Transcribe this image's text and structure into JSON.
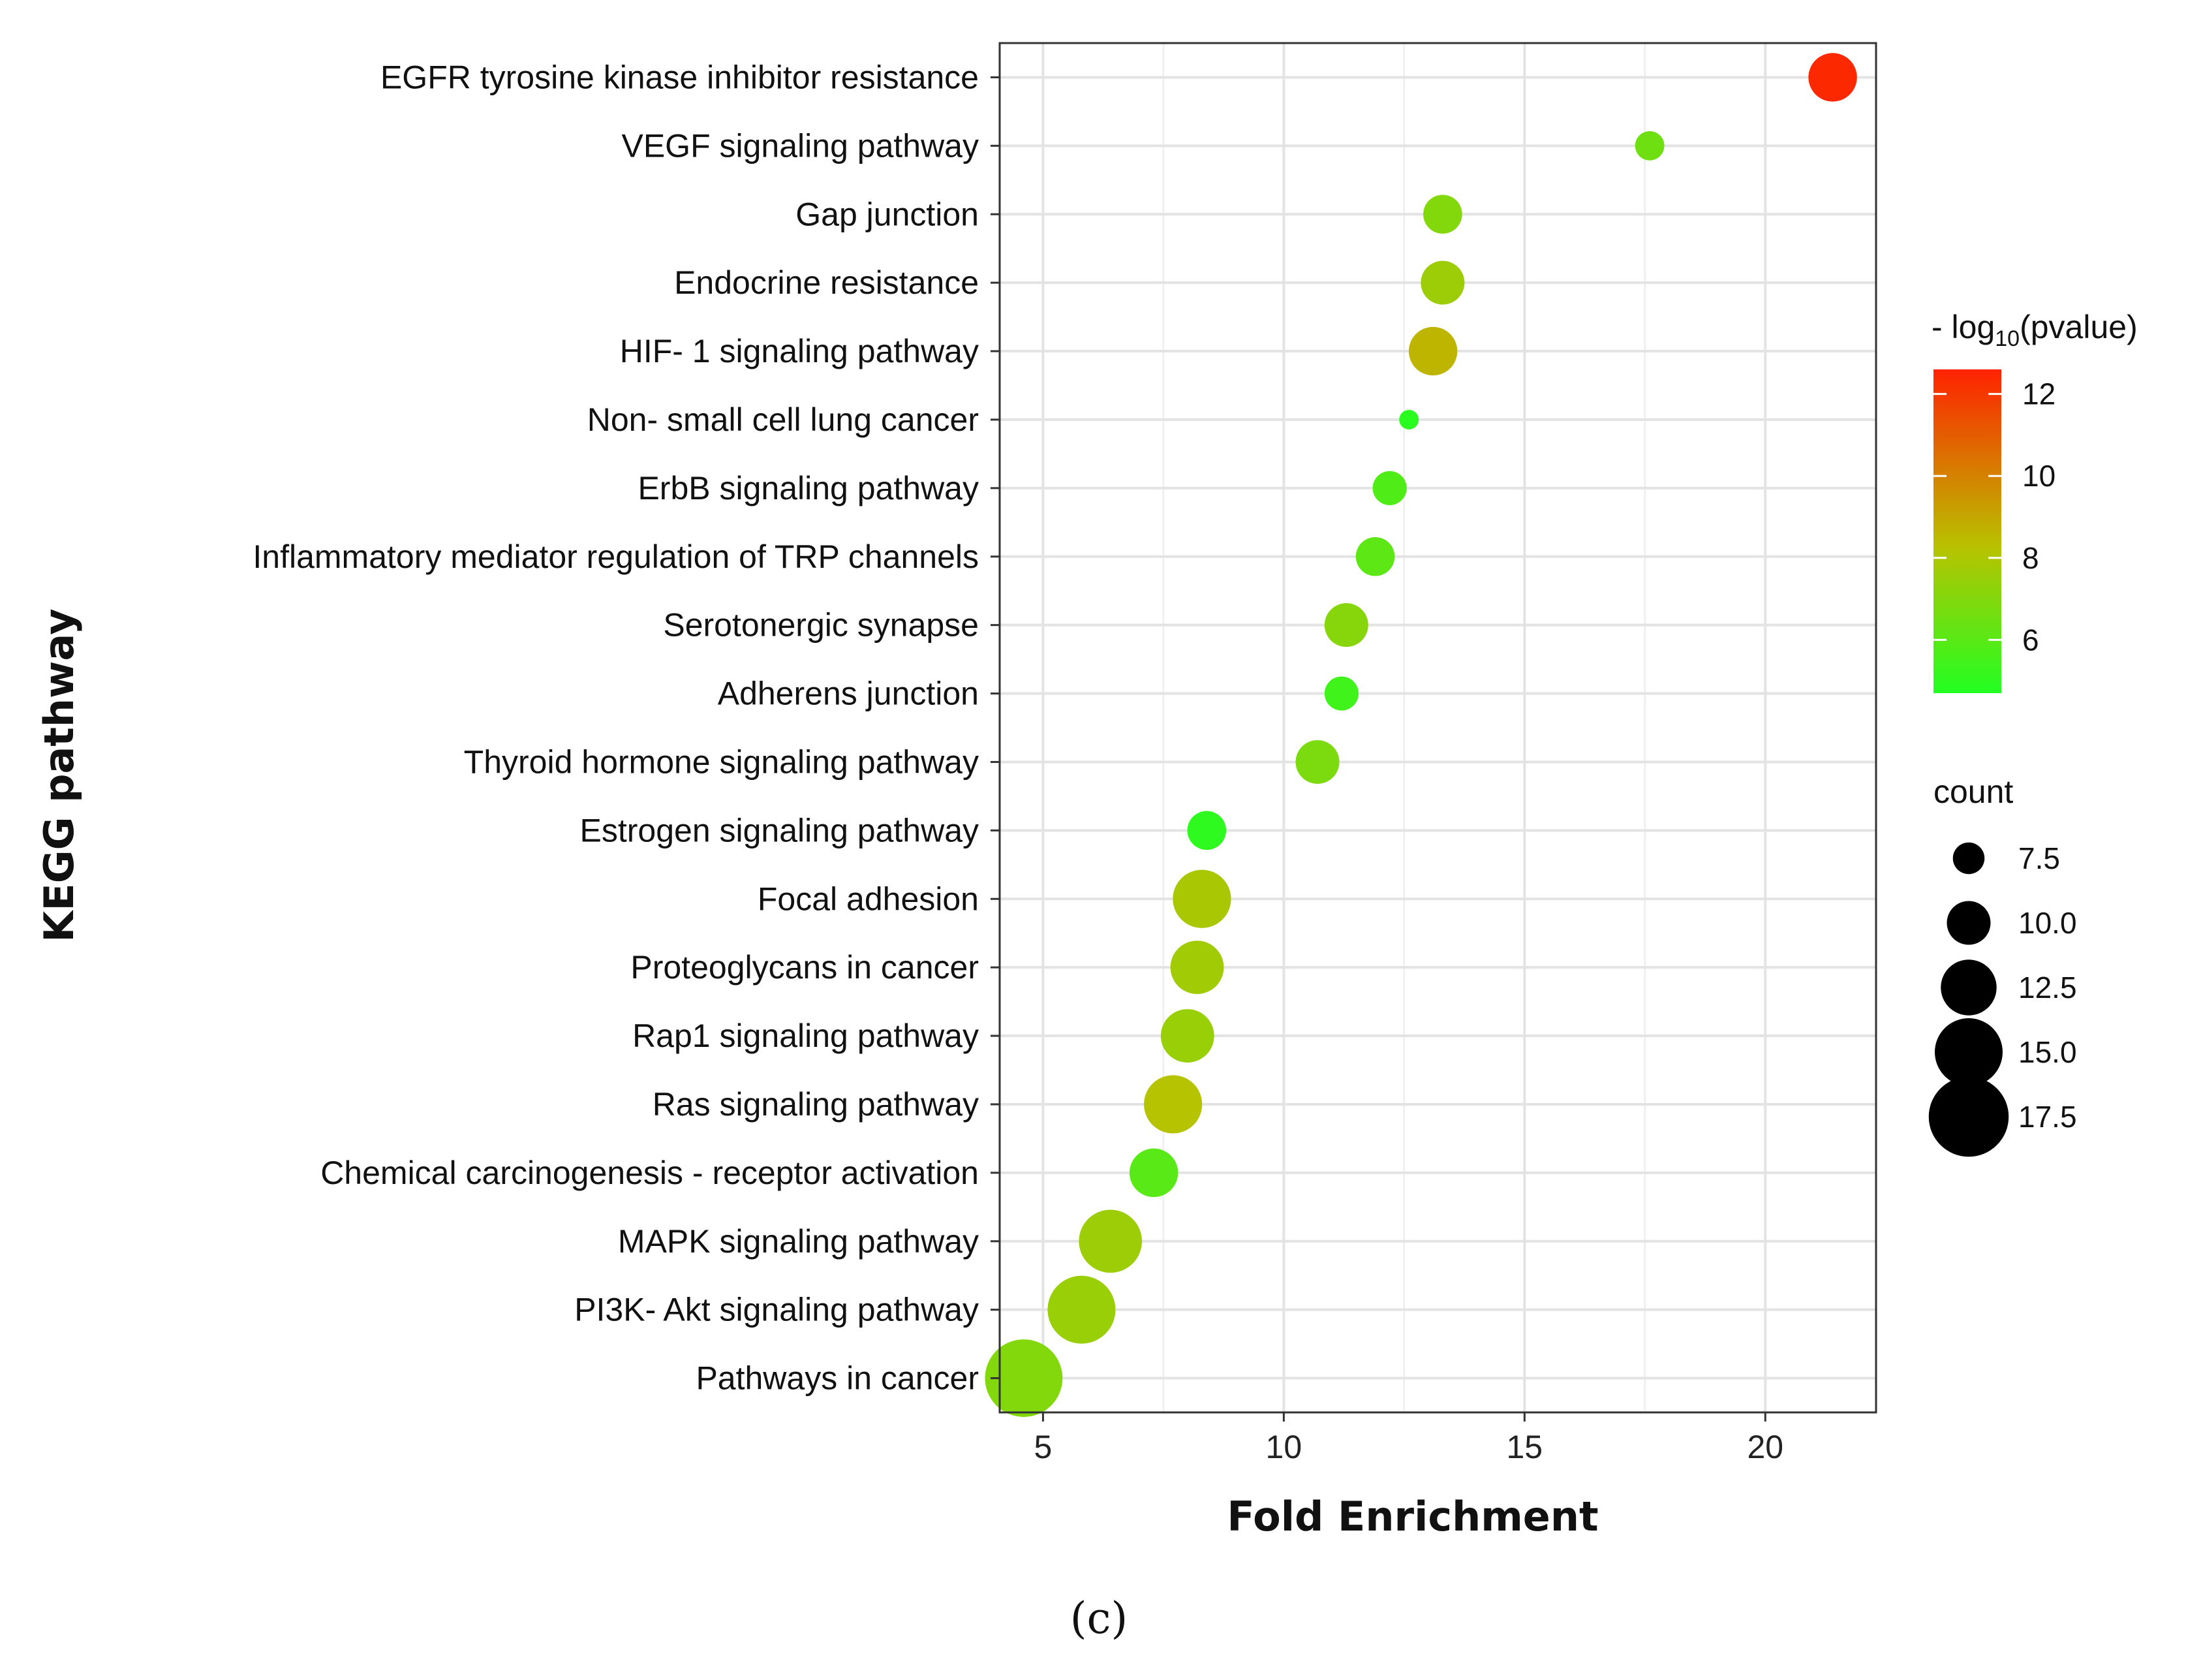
{
  "chart_data": {
    "type": "scatter",
    "subtype": "bubble",
    "xlabel": "Fold Enrichment",
    "ylabel": "KEGG pathway",
    "xlim": [
      4.1,
      22.3
    ],
    "xticks": [
      5,
      10,
      15,
      20
    ],
    "grid": true,
    "panel_label": "(c)",
    "categories": [
      "EGFR tyrosine kinase inhibitor resistance",
      "VEGF signaling pathway",
      "Gap junction",
      "Endocrine resistance",
      "HIF- 1 signaling pathway",
      "Non- small cell lung cancer",
      "ErbB signaling pathway",
      "Inflammatory mediator regulation of TRP channels",
      "Serotonergic synapse",
      "Adherens junction",
      "Thyroid hormone signaling pathway",
      "Estrogen signaling pathway",
      "Focal adhesion",
      "Proteoglycans in cancer",
      "Rap1 signaling pathway",
      "Ras signaling pathway",
      "Chemical carcinogenesis -  receptor activation",
      "MAPK signaling pathway",
      "PI3K- Akt signaling pathway",
      "Pathways in cancer"
    ],
    "fold_enrichment": [
      21.4,
      17.6,
      13.3,
      13.3,
      13.1,
      12.6,
      12.2,
      11.9,
      11.3,
      11.2,
      10.7,
      8.4,
      8.3,
      8.2,
      8.0,
      7.7,
      7.3,
      6.4,
      5.8,
      4.6
    ],
    "neg_log10_pvalue": [
      12.4,
      6.5,
      7.0,
      7.6,
      8.6,
      4.9,
      5.8,
      6.1,
      7.1,
      5.4,
      6.8,
      5.0,
      7.9,
      7.7,
      7.5,
      8.2,
      6.0,
      7.6,
      7.5,
      7.0
    ],
    "count": [
      11,
      7,
      9,
      10,
      11,
      5,
      8,
      9,
      10,
      8,
      10,
      9,
      13,
      12,
      12,
      13,
      11,
      14,
      15,
      17
    ],
    "color_legend": {
      "title_prefix": "- log",
      "title_sub": "10",
      "title_suffix": "(pvalue)",
      "range": [
        4.7,
        12.6
      ],
      "ticks": [
        6,
        8,
        10,
        12
      ],
      "low_color": "#22ff22",
      "mid_color": "#b8c200",
      "high_color": "#ff2200"
    },
    "size_legend": {
      "title": "count",
      "values": [
        7.5,
        10.0,
        12.5,
        15.0,
        17.5
      ],
      "labels": [
        "7.5",
        "10.0",
        "12.5",
        "15.0",
        "17.5"
      ]
    }
  }
}
